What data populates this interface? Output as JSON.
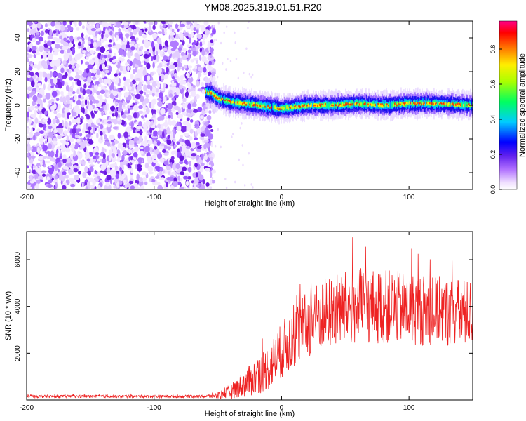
{
  "title": "YM08.2025.319.01.51.R20",
  "colors": {
    "snr_line": "#ee2222",
    "weak_speckle": "#9933ff",
    "frame": "#000000"
  },
  "chart_data": [
    {
      "type": "heatmap",
      "xlabel": "Height of straight line (km)",
      "ylabel": "Frequency (Hz)",
      "xlim": [
        -200,
        150
      ],
      "ylim": [
        -50,
        50
      ],
      "xticks": [
        -200,
        -100,
        0,
        100
      ],
      "yticks": [
        -40,
        -20,
        0,
        20,
        40
      ],
      "colorbar": {
        "label": "Normalized spectral amplitude",
        "range": [
          0,
          0.96
        ],
        "ticks": [
          "0.0",
          "0.2",
          "0.4",
          "0.6",
          "0.8"
        ],
        "colormap": "rainbow (white-violet-blue-cyan-green-yellow-red-magenta)"
      },
      "noise_region": {
        "x_from": -200,
        "x_to": -53,
        "freq_from": -50,
        "freq_to": 50
      },
      "signal_band": {
        "x_from": -60,
        "x_to": 150,
        "center_freq": [
          [
            -60,
            8
          ],
          [
            -55,
            7
          ],
          [
            -50,
            4
          ],
          [
            -45,
            3
          ],
          [
            -40,
            2
          ],
          [
            -30,
            1
          ],
          [
            -20,
            0
          ],
          [
            -10,
            -1
          ],
          [
            0,
            -2
          ],
          [
            10,
            -1
          ],
          [
            20,
            0
          ],
          [
            40,
            0
          ],
          [
            60,
            1
          ],
          [
            80,
            0
          ],
          [
            100,
            1
          ],
          [
            120,
            1
          ],
          [
            150,
            0
          ]
        ],
        "half_width_hz": 4
      }
    },
    {
      "type": "line",
      "xlabel": "Height of straight line (km)",
      "ylabel": "SNR (10 * v/v)",
      "xlim": [
        -200,
        150
      ],
      "ylim": [
        0,
        7200
      ],
      "xticks": [
        -200,
        -100,
        0,
        100
      ],
      "yticks": [
        2000,
        4000,
        6000
      ],
      "envelope": {
        "x": [
          -200,
          -60,
          -50,
          -40,
          -30,
          -20,
          -10,
          0,
          10,
          20,
          30,
          40,
          60,
          80,
          100,
          120,
          150
        ],
        "mean": [
          150,
          150,
          200,
          350,
          650,
          1000,
          1400,
          2100,
          2700,
          3200,
          3600,
          3800,
          4000,
          4000,
          3900,
          3800,
          3700
        ],
        "spread": [
          60,
          60,
          150,
          300,
          550,
          800,
          1000,
          1200,
          1350,
          1450,
          1550,
          1600,
          1650,
          1600,
          1550,
          1500,
          1450
        ]
      }
    }
  ]
}
